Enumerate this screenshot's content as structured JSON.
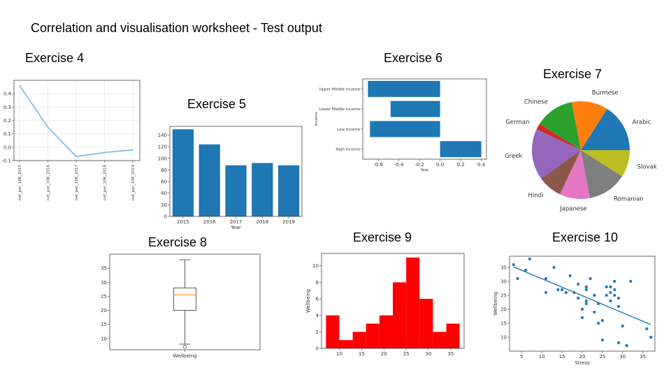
{
  "page": {
    "title": "Correlation and visualisation worksheet - Test output"
  },
  "exercises": [
    {
      "label": "Exercise 4"
    },
    {
      "label": "Exercise 5"
    },
    {
      "label": "Exercise 6"
    },
    {
      "label": "Exercise 7"
    },
    {
      "label": "Exercise 8"
    },
    {
      "label": "Exercise 9"
    },
    {
      "label": "Exercise 10"
    }
  ],
  "chart_data": [
    {
      "type": "line",
      "categories": [
        "net_per_10K_2015",
        "net_per_10K_2016",
        "net_per_10K_2017",
        "net_per_10K_2018",
        "net_per_10K_2019"
      ],
      "values": [
        0.46,
        0.15,
        -0.07,
        -0.04,
        -0.02
      ],
      "ylim": [
        -0.1,
        0.5
      ],
      "yticks": [
        -0.1,
        0.0,
        0.1,
        0.2,
        0.3,
        0.4
      ],
      "grid": true,
      "color": "#89bedc"
    },
    {
      "type": "bar",
      "categories": [
        "2015",
        "2016",
        "2017",
        "2018",
        "2019"
      ],
      "values": [
        150,
        124,
        88,
        92,
        88
      ],
      "xlabel": "Year",
      "ylim": [
        0,
        155
      ],
      "yticks": [
        0,
        20,
        40,
        60,
        80,
        100,
        120,
        140
      ],
      "color": "#1f77b4"
    },
    {
      "type": "bar",
      "orientation": "horizontal",
      "categories": [
        "Upper Middle Income",
        "Lower Middle Income",
        "Low Income",
        "High Income"
      ],
      "values": [
        -0.7,
        -0.48,
        -0.68,
        0.4
      ],
      "xlabel": "Year",
      "ylabel": "Income",
      "xlim": [
        -0.75,
        0.45
      ],
      "xticks": [
        -0.6,
        -0.4,
        -0.2,
        0.0,
        0.2,
        0.4
      ],
      "color": "#1f77b4"
    },
    {
      "type": "pie",
      "slices": [
        {
          "label": "Arabic",
          "value": 16,
          "color": "#1f77b4"
        },
        {
          "label": "Burmese",
          "value": 12,
          "color": "#ff7f0e"
        },
        {
          "label": "Chinese",
          "value": 13,
          "color": "#2ca02c"
        },
        {
          "label": "German",
          "value": 2,
          "color": "#d62728"
        },
        {
          "label": "Greek",
          "value": 17,
          "color": "#9467bd"
        },
        {
          "label": "Hindi",
          "value": 8,
          "color": "#8c564b"
        },
        {
          "label": "Japanese",
          "value": 10,
          "color": "#e377c2"
        },
        {
          "label": "Romanian",
          "value": 13,
          "color": "#7f7f7f"
        },
        {
          "label": "Slovak",
          "value": 9,
          "color": "#bcbd22"
        }
      ]
    },
    {
      "type": "box",
      "xlabel": "Wellbeing",
      "min": 8,
      "q1": 20,
      "median": 25.5,
      "q3": 28,
      "max": 38,
      "outliers": [
        7
      ],
      "ylim": [
        6,
        40
      ],
      "yticks": [
        10,
        15,
        20,
        25,
        30,
        35
      ],
      "median_color": "#ff7f0e"
    },
    {
      "type": "bar",
      "subtype": "histogram",
      "ylabel": "Wellbeing",
      "bin_edges": [
        7,
        10,
        13,
        16,
        19,
        22,
        25,
        28,
        31,
        34,
        37
      ],
      "counts": [
        4,
        1,
        2,
        3,
        4,
        8,
        11,
        6,
        2,
        3
      ],
      "xlim": [
        6,
        38
      ],
      "ylim": [
        0,
        11.5
      ],
      "xticks": [
        10,
        15,
        20,
        25,
        30,
        35
      ],
      "yticks": [
        0,
        2,
        4,
        6,
        8,
        10
      ],
      "color": "#ff0000"
    },
    {
      "type": "scatter",
      "xlabel": "Stress",
      "ylabel": "Wellbeing",
      "x": [
        3,
        4,
        6,
        7,
        11,
        11,
        13,
        14,
        15,
        16,
        17,
        18,
        19,
        19,
        20,
        20,
        21,
        21,
        21,
        21,
        22,
        23,
        23,
        24,
        24,
        25,
        25,
        26,
        26,
        27,
        27,
        27,
        28,
        28,
        28,
        29,
        29,
        29,
        30,
        31,
        32,
        36,
        37
      ],
      "y": [
        36,
        31,
        34,
        38,
        26,
        31,
        35,
        27,
        27,
        26,
        32,
        26,
        29,
        24,
        20,
        17,
        28,
        27,
        23,
        22,
        31,
        25,
        19,
        15,
        22,
        16,
        9,
        25,
        28,
        23,
        28,
        26,
        27,
        30,
        25,
        24,
        21,
        8,
        14,
        7,
        30,
        13,
        10
      ],
      "regression": {
        "x": [
          3,
          37
        ],
        "y": [
          35.2,
          14.5
        ]
      },
      "xlim": [
        2,
        38
      ],
      "ylim": [
        5,
        39
      ],
      "xticks": [
        5,
        10,
        15,
        20,
        25,
        30,
        35
      ],
      "yticks": [
        10,
        15,
        20,
        25,
        30,
        35
      ],
      "color": "#1f77b4"
    }
  ]
}
